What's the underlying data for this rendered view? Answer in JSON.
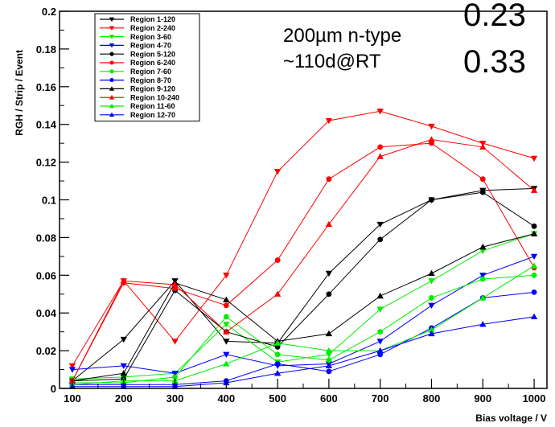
{
  "chart_data": {
    "type": "line",
    "xlabel": "Bias voltage / V",
    "ylabel": "RGH / Strip / Event",
    "xlim": [
      75,
      1025
    ],
    "ylim": [
      0,
      0.2
    ],
    "x_ticks": [
      "100",
      "200",
      "300",
      "400",
      "500",
      "600",
      "700",
      "800",
      "900",
      "1000"
    ],
    "y_ticks": [
      "0",
      "0.02",
      "0.04",
      "0.06",
      "0.08",
      "0.1",
      "0.12",
      "0.14",
      "0.16",
      "0.18",
      "0.2"
    ],
    "x": [
      100,
      200,
      300,
      400,
      500,
      600,
      700,
      800,
      900,
      1000
    ],
    "legend_position": "top-left",
    "annotations": {
      "top_right_1": "0.23",
      "top_right_2": "0.33",
      "label_1": "200µm n-type",
      "label_2": "~110d@RT"
    },
    "series": [
      {
        "name": "Region 1-120",
        "color": "#000000",
        "marker": "triangle-down",
        "values": [
          0.004,
          0.026,
          0.057,
          0.025,
          0.024,
          0.061,
          0.087,
          0.1,
          0.105,
          0.106
        ]
      },
      {
        "name": "Region 2-240",
        "color": "#ff0000",
        "marker": "triangle-down",
        "values": [
          0.012,
          0.057,
          0.025,
          0.06,
          0.115,
          0.142,
          0.147,
          0.139,
          0.13,
          0.122
        ]
      },
      {
        "name": "Region 3-60",
        "color": "#00ee00",
        "marker": "triangle-down",
        "values": [
          0.005,
          0.006,
          0.008,
          0.034,
          0.014,
          0.018,
          0.042,
          0.057,
          0.073,
          0.082
        ]
      },
      {
        "name": "Region 4-70",
        "color": "#0000ff",
        "marker": "triangle-down",
        "values": [
          0.01,
          0.012,
          0.008,
          0.018,
          0.012,
          0.013,
          0.025,
          0.044,
          0.06,
          0.07
        ]
      },
      {
        "name": "Region 5-120",
        "color": "#000000",
        "marker": "circle",
        "values": [
          0.004,
          0.005,
          0.052,
          0.03,
          0.022,
          0.05,
          0.079,
          0.1,
          0.104,
          0.086
        ]
      },
      {
        "name": "Region 6-240",
        "color": "#ff0000",
        "marker": "circle",
        "values": [
          0.004,
          0.056,
          0.053,
          0.044,
          0.068,
          0.111,
          0.128,
          0.13,
          0.111,
          0.064
        ]
      },
      {
        "name": "Region 7-60",
        "color": "#00ee00",
        "marker": "circle",
        "values": [
          0.003,
          0.003,
          0.006,
          0.038,
          0.018,
          0.015,
          0.03,
          0.048,
          0.058,
          0.06
        ]
      },
      {
        "name": "Region 8-70",
        "color": "#0000ff",
        "marker": "circle",
        "values": [
          0.002,
          0.002,
          0.002,
          0.004,
          0.013,
          0.009,
          0.018,
          0.032,
          0.048,
          0.051
        ]
      },
      {
        "name": "Region 9-120",
        "color": "#000000",
        "marker": "triangle-up",
        "values": [
          0.004,
          0.008,
          0.056,
          0.047,
          0.025,
          0.029,
          0.049,
          0.061,
          0.075,
          0.082
        ]
      },
      {
        "name": "Region 10-240",
        "color": "#ff0000",
        "marker": "triangle-up",
        "values": [
          0.004,
          0.057,
          0.055,
          0.03,
          0.05,
          0.087,
          0.123,
          0.132,
          0.128,
          0.105
        ]
      },
      {
        "name": "Region 11-60",
        "color": "#00ee00",
        "marker": "triangle-up",
        "values": [
          0.002,
          0.004,
          0.004,
          0.013,
          0.024,
          0.02,
          0.02,
          0.031,
          0.048,
          0.065
        ]
      },
      {
        "name": "Region 12-70",
        "color": "#0000ff",
        "marker": "triangle-up",
        "values": [
          0.001,
          0.001,
          0.001,
          0.003,
          0.008,
          0.012,
          0.02,
          0.029,
          0.034,
          0.038
        ]
      }
    ]
  }
}
